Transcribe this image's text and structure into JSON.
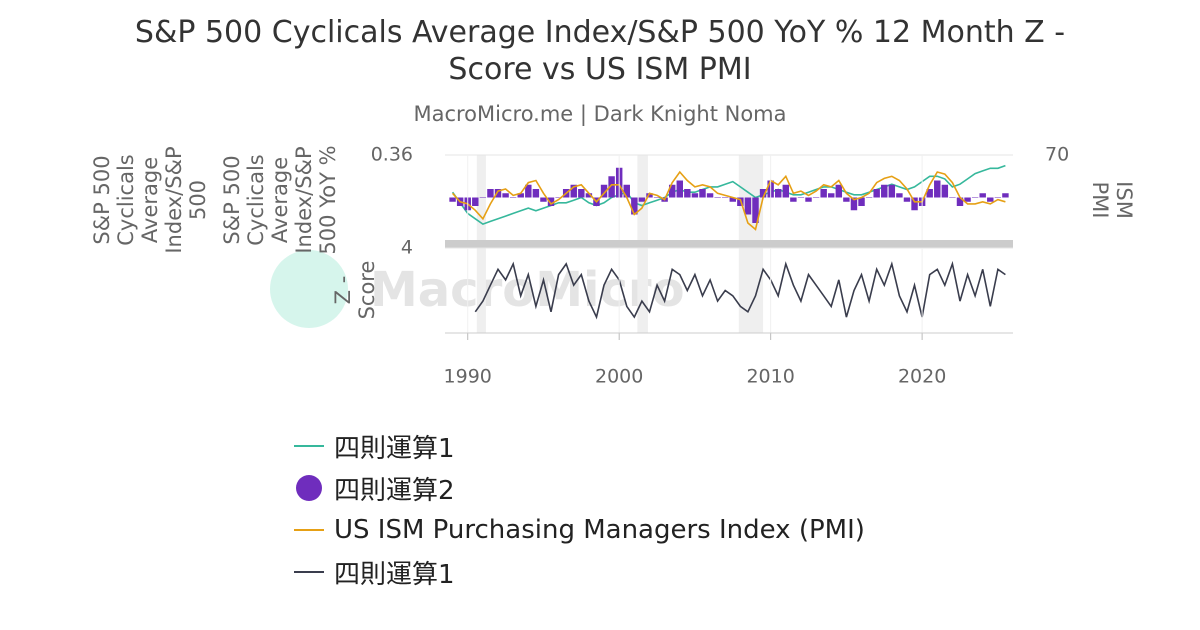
{
  "chart_data": [
    {
      "type": "line",
      "title": "S&P 500 Cyclicals Average Index/S&P 500 YoY % 12 Month Z - Score vs US ISM PMI",
      "subtitle": "MacroMicro.me | Dark Knight Noma",
      "watermark": "MacroMicro",
      "ylabel": "S&P 500 Cyclicals Average Index/S&P 500",
      "y3label": "S&P 500 Cyclicals Average Index/S&P 500 YoY %",
      "y2label": "ISM PMI",
      "xlim": [
        1988.5,
        2026
      ],
      "ylim": [
        0.2,
        0.36
      ],
      "yticks": [
        0.36
      ],
      "y2lim": [
        30,
        70
      ],
      "y2ticks": [
        70
      ],
      "y3lim": [
        -0.1,
        0.1
      ],
      "recessions": [
        [
          1990.6,
          1991.2
        ],
        [
          2001.2,
          2001.9
        ],
        [
          2007.9,
          2009.5
        ]
      ],
      "x": [
        1989,
        1989.5,
        1990,
        1990.5,
        1991,
        1991.5,
        1992,
        1992.5,
        1993,
        1993.5,
        1994,
        1994.5,
        1995,
        1995.5,
        1996,
        1996.5,
        1997,
        1997.5,
        1998,
        1998.5,
        1999,
        1999.5,
        2000,
        2000.5,
        2001,
        2001.5,
        2002,
        2002.5,
        2003,
        2003.5,
        2004,
        2004.5,
        2005,
        2005.5,
        2006,
        2006.5,
        2007,
        2007.5,
        2008,
        2008.5,
        2009,
        2009.5,
        2010,
        2010.5,
        2011,
        2011.5,
        2012,
        2012.5,
        2013,
        2013.5,
        2014,
        2014.5,
        2015,
        2015.5,
        2016,
        2016.5,
        2017,
        2017.5,
        2018,
        2018.5,
        2019,
        2019.5,
        2020,
        2020.5,
        2021,
        2021.5,
        2022,
        2022.5,
        2023,
        2023.5,
        2024,
        2024.5,
        2025,
        2025.5
      ],
      "series": [
        {
          "name": "四則運算1",
          "color": "#36b89c",
          "kind": "line",
          "axis": "y",
          "values": [
            0.29,
            0.27,
            0.25,
            0.24,
            0.23,
            0.235,
            0.24,
            0.245,
            0.25,
            0.255,
            0.26,
            0.255,
            0.26,
            0.265,
            0.27,
            0.27,
            0.275,
            0.28,
            0.27,
            0.265,
            0.27,
            0.28,
            0.285,
            0.29,
            0.27,
            0.265,
            0.27,
            0.275,
            0.28,
            0.29,
            0.295,
            0.29,
            0.29,
            0.295,
            0.3,
            0.3,
            0.305,
            0.31,
            0.3,
            0.29,
            0.28,
            0.285,
            0.29,
            0.295,
            0.29,
            0.285,
            0.285,
            0.29,
            0.295,
            0.3,
            0.3,
            0.295,
            0.29,
            0.285,
            0.285,
            0.29,
            0.295,
            0.3,
            0.305,
            0.3,
            0.295,
            0.3,
            0.31,
            0.32,
            0.32,
            0.315,
            0.3,
            0.305,
            0.315,
            0.325,
            0.33,
            0.335,
            0.335,
            0.34
          ]
        },
        {
          "name": "四則運算2",
          "color": "#6f2dbd",
          "kind": "bar",
          "axis": "y3",
          "values": [
            -0.01,
            -0.02,
            -0.03,
            -0.02,
            0,
            0.02,
            0.02,
            0.01,
            0,
            0.01,
            0.03,
            0.02,
            -0.01,
            -0.02,
            0,
            0.02,
            0.03,
            0.02,
            0.01,
            -0.02,
            0.03,
            0.05,
            0.07,
            0.03,
            -0.04,
            -0.01,
            0.01,
            0,
            -0.01,
            0.03,
            0.04,
            0.02,
            0.01,
            0.02,
            0.01,
            0,
            0,
            -0.01,
            -0.02,
            -0.04,
            -0.06,
            0.02,
            0.04,
            0.02,
            0.03,
            -0.01,
            0,
            -0.01,
            0,
            0.02,
            0.01,
            0.03,
            -0.01,
            -0.03,
            -0.02,
            0,
            0.02,
            0.03,
            0.03,
            0.01,
            -0.01,
            -0.03,
            -0.02,
            0.02,
            0.04,
            0.03,
            0,
            -0.02,
            -0.01,
            0,
            0.01,
            -0.01,
            0,
            0.01
          ]
        },
        {
          "name": "US ISM Purchasing Managers Index (PMI)",
          "color": "#e6a015",
          "kind": "line",
          "axis": "y2",
          "values": [
            52,
            48,
            47,
            44,
            40,
            47,
            53,
            54,
            51,
            52,
            57,
            58,
            52,
            47,
            49,
            52,
            55,
            56,
            52,
            48,
            52,
            56,
            56,
            50,
            42,
            45,
            52,
            51,
            49,
            57,
            62,
            58,
            55,
            56,
            55,
            52,
            51,
            50,
            49,
            38,
            35,
            50,
            58,
            56,
            60,
            52,
            53,
            51,
            53,
            56,
            55,
            58,
            52,
            49,
            50,
            52,
            57,
            59,
            60,
            58,
            54,
            48,
            48,
            56,
            62,
            61,
            57,
            50,
            47,
            47,
            48,
            47,
            49,
            48
          ]
        }
      ]
    },
    {
      "type": "line",
      "ylabel": "Z - Score",
      "xlim": [
        1988.5,
        2026
      ],
      "xticks": [
        1990,
        2000,
        2010,
        2020
      ],
      "ylim": [
        -4,
        4
      ],
      "yticks": [
        4
      ],
      "x": [
        1989,
        1989.5,
        1990,
        1990.5,
        1991,
        1991.5,
        1992,
        1992.5,
        1993,
        1993.5,
        1994,
        1994.5,
        1995,
        1995.5,
        1996,
        1996.5,
        1997,
        1997.5,
        1998,
        1998.5,
        1999,
        1999.5,
        2000,
        2000.5,
        2001,
        2001.5,
        2002,
        2002.5,
        2003,
        2003.5,
        2004,
        2004.5,
        2005,
        2005.5,
        2006,
        2006.5,
        2007,
        2007.5,
        2008,
        2008.5,
        2009,
        2009.5,
        2010,
        2010.5,
        2011,
        2011.5,
        2012,
        2012.5,
        2013,
        2013.5,
        2014,
        2014.5,
        2015,
        2015.5,
        2016,
        2016.5,
        2017,
        2017.5,
        2018,
        2018.5,
        2019,
        2019.5,
        2020,
        2020.5,
        2021,
        2021.5,
        2022,
        2022.5,
        2023,
        2023.5,
        2024,
        2024.5,
        2025,
        2025.5
      ],
      "series": [
        {
          "name": "四則運算1",
          "color": "#3a3d4d",
          "kind": "line",
          "axis": "y",
          "values": [
            null,
            null,
            null,
            -2.0,
            -1.0,
            0.5,
            2.0,
            1.0,
            2.5,
            -0.5,
            1.5,
            -1.5,
            1.0,
            -2.0,
            1.5,
            2.5,
            0.5,
            1.5,
            -1.0,
            -2.5,
            0.5,
            2.0,
            1.0,
            -1.5,
            -2.5,
            -1.0,
            -2.0,
            0.5,
            -1.0,
            2.0,
            1.5,
            0.0,
            1.5,
            -0.5,
            1.0,
            -1.0,
            0.0,
            -0.5,
            -1.5,
            -2.0,
            -0.5,
            2.0,
            1.0,
            -0.5,
            2.5,
            0.5,
            -1.0,
            1.5,
            0.5,
            -0.5,
            -1.5,
            1.0,
            -2.5,
            0.0,
            1.5,
            -1.0,
            2.0,
            0.5,
            2.5,
            -0.5,
            -2.0,
            0.5,
            -2.5,
            1.5,
            2.0,
            0.5,
            2.5,
            -1.0,
            1.5,
            -0.5,
            2.0,
            -1.5,
            2.0,
            1.5
          ]
        }
      ]
    }
  ]
}
